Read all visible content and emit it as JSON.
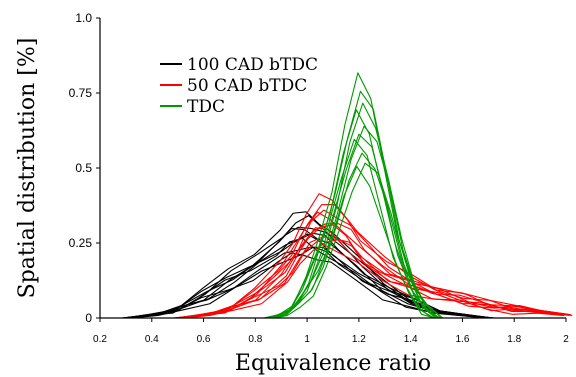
{
  "chart_data": {
    "type": "line",
    "xlabel": "Equivalence ratio",
    "ylabel": "Spatial distribution [%]",
    "xlim": [
      0.2,
      2.0
    ],
    "ylim": [
      0,
      1.0
    ],
    "xticks": [
      {
        "value": 0.2,
        "label": "0.2"
      },
      {
        "value": 0.4,
        "label": "0.4"
      },
      {
        "value": 0.6,
        "label": "0.6"
      },
      {
        "value": 0.8,
        "label": "0.8"
      },
      {
        "value": 1.0,
        "label": "1"
      },
      {
        "value": 1.2,
        "label": "1.2"
      },
      {
        "value": 1.4,
        "label": "1.4"
      },
      {
        "value": 1.6,
        "label": "1.6"
      },
      {
        "value": 1.8,
        "label": "1.8"
      },
      {
        "value": 2.0,
        "label": "2"
      }
    ],
    "yticks": [
      {
        "value": 0,
        "label": "0"
      },
      {
        "value": 0.25,
        "label": "0.25"
      },
      {
        "value": 0.5,
        "label": "0.5"
      },
      {
        "value": 0.75,
        "label": "0.75"
      },
      {
        "value": 1.0,
        "label": "1.0"
      }
    ],
    "grid": false,
    "legend_position": "top-left",
    "series": [
      {
        "name": "100 CAD bTDC",
        "color": "#000000",
        "x": [
          0.3,
          0.4,
          0.5,
          0.6,
          0.7,
          0.8,
          0.9,
          0.95,
          1.0,
          1.05,
          1.1,
          1.2,
          1.3,
          1.4,
          1.5,
          1.6,
          1.7
        ],
        "y": [
          0.0,
          0.01,
          0.03,
          0.07,
          0.12,
          0.17,
          0.23,
          0.26,
          0.27,
          0.25,
          0.22,
          0.15,
          0.09,
          0.05,
          0.02,
          0.01,
          0.0
        ]
      },
      {
        "name": "50 CAD bTDC",
        "color": "#ff0000",
        "x": [
          0.5,
          0.6,
          0.7,
          0.8,
          0.9,
          0.95,
          1.0,
          1.05,
          1.1,
          1.15,
          1.2,
          1.3,
          1.4,
          1.5,
          1.6,
          1.7,
          1.8,
          1.9,
          2.0
        ],
        "y": [
          0.0,
          0.01,
          0.03,
          0.07,
          0.14,
          0.2,
          0.27,
          0.31,
          0.3,
          0.27,
          0.22,
          0.15,
          0.11,
          0.08,
          0.06,
          0.04,
          0.03,
          0.02,
          0.01
        ]
      },
      {
        "name": "TDC",
        "color": "#009900",
        "x": [
          0.85,
          0.9,
          0.95,
          1.0,
          1.05,
          1.1,
          1.15,
          1.2,
          1.25,
          1.3,
          1.35,
          1.4,
          1.45,
          1.5
        ],
        "y": [
          0.0,
          0.01,
          0.04,
          0.1,
          0.2,
          0.33,
          0.5,
          0.62,
          0.56,
          0.4,
          0.22,
          0.1,
          0.03,
          0.0
        ]
      }
    ]
  }
}
